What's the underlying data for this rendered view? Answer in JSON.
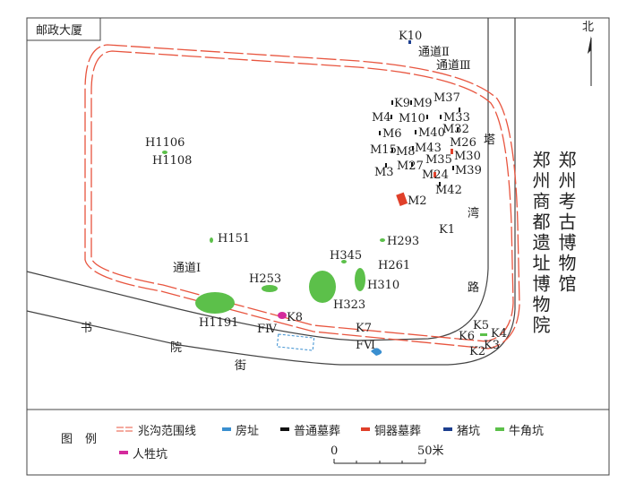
{
  "map": {
    "building": "邮政大厦",
    "north": "北",
    "labels": [
      "K10",
      "通道Ⅱ",
      "通道Ⅲ",
      "K9",
      "M9",
      "M37",
      "M4",
      "M10",
      "M33",
      "M6",
      "M40",
      "M32",
      "M15",
      "M8",
      "M43",
      "M26",
      "M3",
      "M27",
      "M35",
      "M30",
      "M24",
      "M39",
      "M42",
      "M2",
      "K1",
      "H1106",
      "H1108",
      "H151",
      "H293",
      "H345",
      "H261",
      "H253",
      "H310",
      "通道Ⅰ",
      "H323",
      "H1191",
      "K8",
      "FⅣ",
      "K7",
      "FⅥ",
      "K5",
      "K6",
      "K4",
      "K2",
      "K3"
    ],
    "streets": [
      "塔",
      "湾",
      "路",
      "书",
      "院",
      "街"
    ],
    "museums": [
      "郑州考古博物馆",
      "郑州商都遗址博物院"
    ]
  },
  "legend": {
    "title": "图例",
    "items": [
      "兆沟范围线",
      "房址",
      "普通墓葬",
      "铜器墓葬",
      "猪坑",
      "牛角坑",
      "人牲坑"
    ]
  },
  "scale": {
    "start": "0",
    "end": "50米"
  }
}
